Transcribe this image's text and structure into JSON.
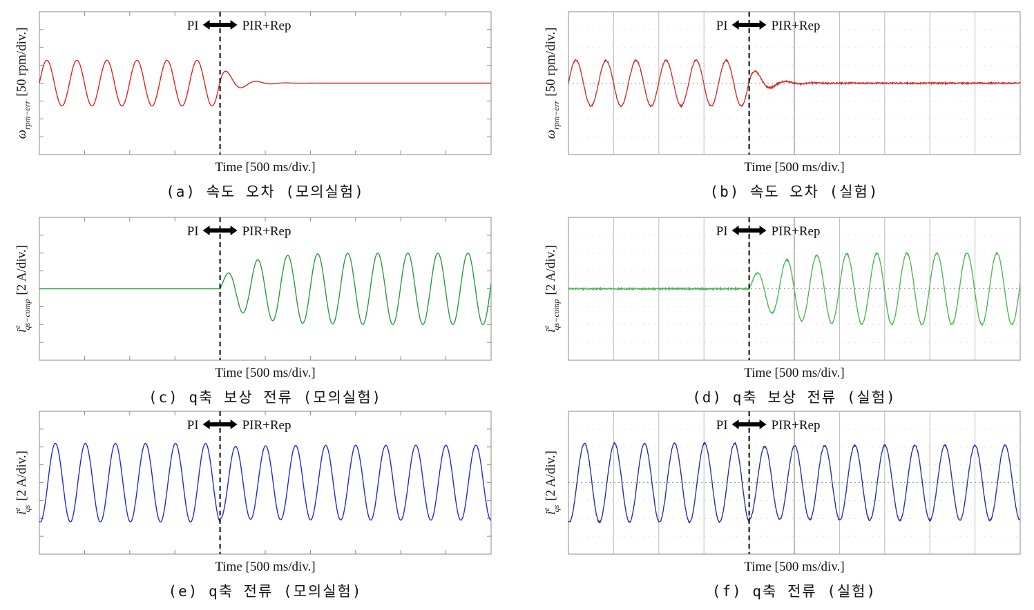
{
  "panels": [
    {
      "y_label": {
        "symbol": "ω",
        "sub": "rpm−err",
        "unit": "[50 rpm/div.]"
      },
      "left_label": "PI",
      "right_label": "PIR+Rep",
      "x_label": "Time [500 ms/div.]",
      "caption": "(a) 속도 오차 (모의실험)"
    },
    {
      "y_label": {
        "symbol": "ω",
        "sub": "rpm−err",
        "unit": "[50 rpm/div.]"
      },
      "left_label": "PI",
      "right_label": "PIR+Rep",
      "x_label": "Time [500 ms/div.]",
      "caption": "(b) 속도 오차 (실험)"
    },
    {
      "y_label": {
        "symbol": "i",
        "sup": "e",
        "sub": "qs−comp",
        "unit": "[2 A/div.]"
      },
      "left_label": "PI",
      "right_label": "PIR+Rep",
      "x_label": "Time [500 ms/div.]",
      "caption": "(c) q축 보상 전류 (모의실험)"
    },
    {
      "y_label": {
        "symbol": "i",
        "sup": "e",
        "sub": "qs−comp",
        "unit": "[2 A/div.]"
      },
      "left_label": "PI",
      "right_label": "PIR+Rep",
      "x_label": "Time [500 ms/div.]",
      "caption": "(d) q축 보상 전류 (실험)"
    },
    {
      "y_label": {
        "symbol": "i",
        "sup": "e",
        "sub": "qs",
        "unit": "[2 A/div.]"
      },
      "left_label": "PI",
      "right_label": "PIR+Rep",
      "x_label": "Time [500 ms/div.]",
      "caption": "(e) q축 전류 (모의실험)"
    },
    {
      "y_label": {
        "symbol": "i",
        "sup": "e",
        "sub": "qs",
        "unit": "[2 A/div.]"
      },
      "left_label": "PI",
      "right_label": "PIR+Rep",
      "x_label": "Time [500 ms/div.]",
      "caption": "(f) q축 전류 (실험)"
    }
  ]
}
